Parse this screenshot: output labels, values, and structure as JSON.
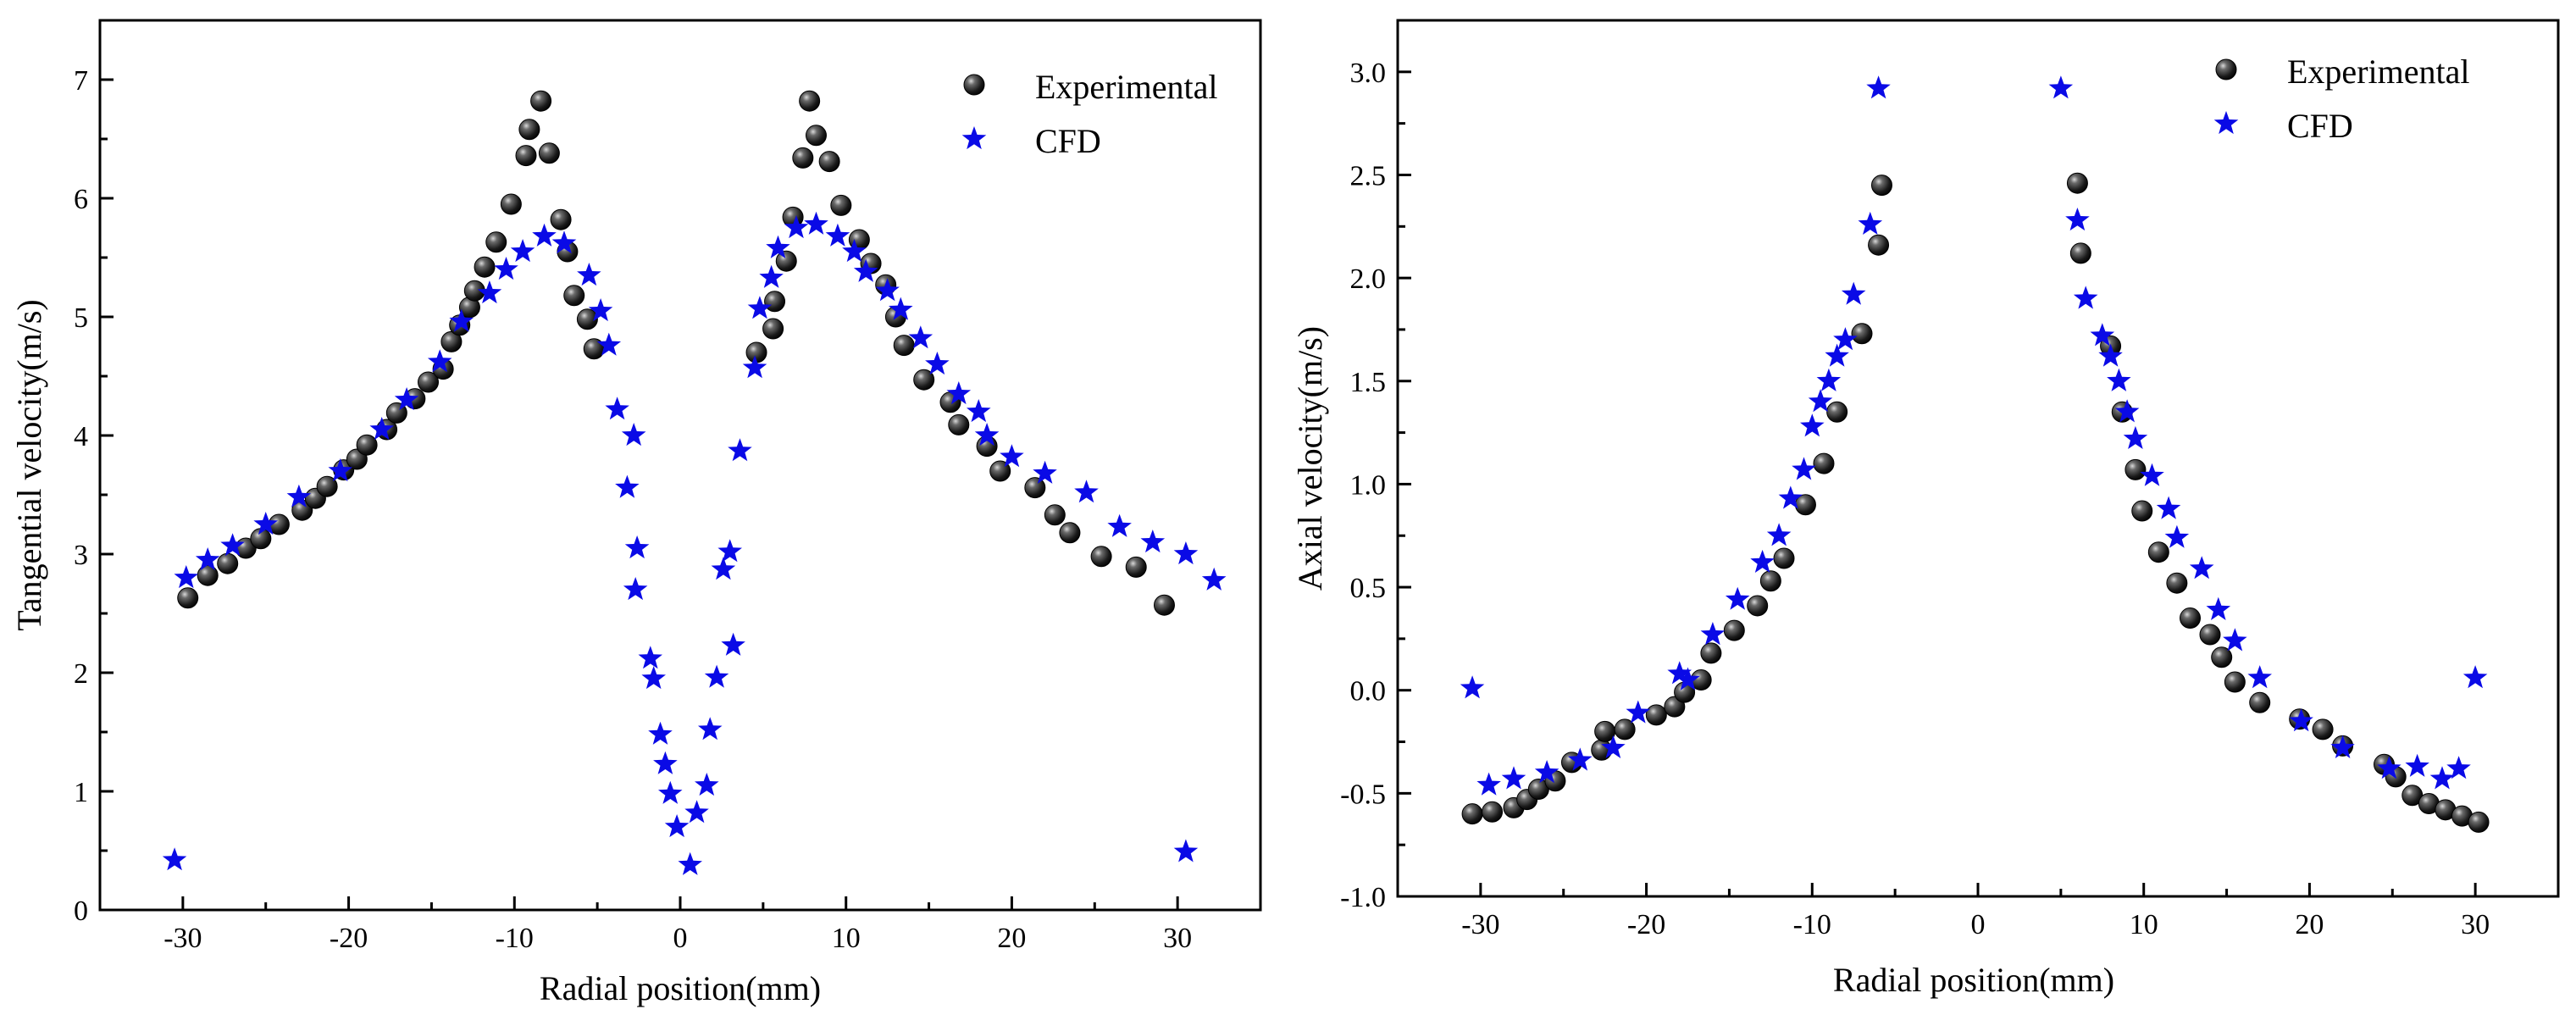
{
  "chart_data": [
    {
      "type": "scatter",
      "id": "left",
      "title": "",
      "xlabel": "Radial position(mm)",
      "ylabel": "Tangential velocity(m/s)",
      "xlim": [
        -35,
        35
      ],
      "ylim": [
        0,
        7.5
      ],
      "xticks": [
        -30,
        -20,
        -10,
        0,
        10,
        20,
        30
      ],
      "yticks": [
        0,
        1,
        2,
        3,
        4,
        5,
        6,
        7
      ],
      "grid": false,
      "legend_position": "top-right",
      "series": [
        {
          "name": "Experimental",
          "marker": "sphere",
          "color": "#111111",
          "points": [
            [
              -29.7,
              2.63
            ],
            [
              -28.5,
              2.82
            ],
            [
              -27.3,
              2.92
            ],
            [
              -26.2,
              3.05
            ],
            [
              -25.3,
              3.13
            ],
            [
              -24.2,
              3.25
            ],
            [
              -22.8,
              3.37
            ],
            [
              -22.0,
              3.47
            ],
            [
              -21.3,
              3.57
            ],
            [
              -20.3,
              3.71
            ],
            [
              -19.5,
              3.8
            ],
            [
              -18.9,
              3.92
            ],
            [
              -17.7,
              4.05
            ],
            [
              -17.1,
              4.19
            ],
            [
              -16.0,
              4.31
            ],
            [
              -15.2,
              4.45
            ],
            [
              -14.3,
              4.56
            ],
            [
              -13.8,
              4.79
            ],
            [
              -13.3,
              4.93
            ],
            [
              -12.7,
              5.08
            ],
            [
              -12.4,
              5.22
            ],
            [
              -11.8,
              5.42
            ],
            [
              -11.1,
              5.63
            ],
            [
              -10.2,
              5.95
            ],
            [
              -9.3,
              6.36
            ],
            [
              -9.1,
              6.58
            ],
            [
              -8.4,
              6.82
            ],
            [
              -7.9,
              6.38
            ],
            [
              -7.2,
              5.82
            ],
            [
              -6.8,
              5.55
            ],
            [
              -6.4,
              5.18
            ],
            [
              -5.6,
              4.98
            ],
            [
              -5.2,
              4.73
            ],
            [
              4.6,
              4.7
            ],
            [
              5.6,
              4.9
            ],
            [
              5.7,
              5.13
            ],
            [
              6.4,
              5.47
            ],
            [
              6.8,
              5.84
            ],
            [
              7.4,
              6.34
            ],
            [
              7.8,
              6.82
            ],
            [
              8.2,
              6.53
            ],
            [
              9.0,
              6.31
            ],
            [
              9.7,
              5.94
            ],
            [
              10.8,
              5.65
            ],
            [
              11.5,
              5.45
            ],
            [
              12.4,
              5.27
            ],
            [
              13.0,
              5.0
            ],
            [
              13.5,
              4.76
            ],
            [
              14.7,
              4.47
            ],
            [
              16.3,
              4.28
            ],
            [
              16.8,
              4.09
            ],
            [
              18.5,
              3.91
            ],
            [
              19.3,
              3.7
            ],
            [
              21.4,
              3.56
            ],
            [
              22.6,
              3.33
            ],
            [
              23.5,
              3.18
            ],
            [
              25.4,
              2.98
            ],
            [
              27.5,
              2.89
            ],
            [
              29.2,
              2.57
            ]
          ]
        },
        {
          "name": "CFD",
          "marker": "star",
          "color": "#0a0ae6",
          "points": [
            [
              -30.5,
              0.42
            ],
            [
              -29.8,
              2.8
            ],
            [
              -28.5,
              2.95
            ],
            [
              -27.0,
              3.07
            ],
            [
              -25.0,
              3.25
            ],
            [
              -23.0,
              3.48
            ],
            [
              -20.5,
              3.7
            ],
            [
              -18.0,
              4.05
            ],
            [
              -16.5,
              4.3
            ],
            [
              -14.5,
              4.62
            ],
            [
              -13.2,
              4.96
            ],
            [
              -11.5,
              5.2
            ],
            [
              -10.5,
              5.4
            ],
            [
              -9.5,
              5.55
            ],
            [
              -8.2,
              5.68
            ],
            [
              -7.0,
              5.62
            ],
            [
              -5.5,
              5.35
            ],
            [
              -4.8,
              5.05
            ],
            [
              -4.3,
              4.76
            ],
            [
              -3.8,
              4.22
            ],
            [
              -2.8,
              4.0
            ],
            [
              -3.2,
              3.56
            ],
            [
              -2.6,
              3.05
            ],
            [
              -2.7,
              2.7
            ],
            [
              -1.8,
              2.12
            ],
            [
              -1.6,
              1.95
            ],
            [
              -1.2,
              1.48
            ],
            [
              -0.9,
              1.23
            ],
            [
              -0.6,
              0.98
            ],
            [
              -0.2,
              0.7
            ],
            [
              0.6,
              0.38
            ],
            [
              1.0,
              0.82
            ],
            [
              1.6,
              1.05
            ],
            [
              1.8,
              1.52
            ],
            [
              2.2,
              1.96
            ],
            [
              2.6,
              2.87
            ],
            [
              3.0,
              3.02
            ],
            [
              3.2,
              2.23
            ],
            [
              3.6,
              3.87
            ],
            [
              4.5,
              4.57
            ],
            [
              4.8,
              5.07
            ],
            [
              5.5,
              5.33
            ],
            [
              5.9,
              5.58
            ],
            [
              7.0,
              5.75
            ],
            [
              8.2,
              5.78
            ],
            [
              9.5,
              5.68
            ],
            [
              10.5,
              5.55
            ],
            [
              11.2,
              5.38
            ],
            [
              12.5,
              5.22
            ],
            [
              13.3,
              5.06
            ],
            [
              14.5,
              4.82
            ],
            [
              15.5,
              4.6
            ],
            [
              16.8,
              4.35
            ],
            [
              18.0,
              4.2
            ],
            [
              18.5,
              4.0
            ],
            [
              20.0,
              3.82
            ],
            [
              22.0,
              3.68
            ],
            [
              24.5,
              3.52
            ],
            [
              26.5,
              3.23
            ],
            [
              28.5,
              3.1
            ],
            [
              30.5,
              3.0
            ],
            [
              32.2,
              2.78
            ],
            [
              30.5,
              0.49
            ]
          ]
        }
      ]
    },
    {
      "type": "scatter",
      "id": "right",
      "title": "",
      "xlabel": "Radial position(mm)",
      "ylabel": "Axial velocity(m/s)",
      "xlim": [
        -35,
        35
      ],
      "ylim": [
        -1.0,
        3.25
      ],
      "xticks": [
        -30,
        -20,
        -10,
        0,
        10,
        20,
        30
      ],
      "yticks": [
        -1.0,
        -0.5,
        0.0,
        0.5,
        1.0,
        1.5,
        2.0,
        2.5,
        3.0
      ],
      "grid": false,
      "legend_position": "top-right",
      "series": [
        {
          "name": "Experimental",
          "marker": "sphere",
          "color": "#111111",
          "points": [
            [
              -30.5,
              -0.6
            ],
            [
              -29.3,
              -0.59
            ],
            [
              -28.0,
              -0.57
            ],
            [
              -27.2,
              -0.53
            ],
            [
              -26.5,
              -0.48
            ],
            [
              -25.5,
              -0.44
            ],
            [
              -24.5,
              -0.35
            ],
            [
              -22.7,
              -0.29
            ],
            [
              -22.5,
              -0.2
            ],
            [
              -21.3,
              -0.19
            ],
            [
              -19.4,
              -0.12
            ],
            [
              -18.3,
              -0.08
            ],
            [
              -17.7,
              -0.01
            ],
            [
              -16.7,
              0.05
            ],
            [
              -16.1,
              0.18
            ],
            [
              -14.7,
              0.29
            ],
            [
              -13.3,
              0.41
            ],
            [
              -12.5,
              0.53
            ],
            [
              -11.7,
              0.64
            ],
            [
              -10.4,
              0.9
            ],
            [
              -9.3,
              1.1
            ],
            [
              -8.5,
              1.35
            ],
            [
              -7.0,
              1.73
            ],
            [
              -6.0,
              2.16
            ],
            [
              -5.8,
              2.45
            ],
            [
              6.0,
              2.46
            ],
            [
              6.2,
              2.12
            ],
            [
              8.0,
              1.67
            ],
            [
              8.7,
              1.35
            ],
            [
              9.5,
              1.07
            ],
            [
              9.9,
              0.87
            ],
            [
              10.9,
              0.67
            ],
            [
              12.0,
              0.52
            ],
            [
              12.8,
              0.35
            ],
            [
              14.0,
              0.27
            ],
            [
              14.7,
              0.16
            ],
            [
              15.5,
              0.04
            ],
            [
              17.0,
              -0.06
            ],
            [
              19.4,
              -0.14
            ],
            [
              20.8,
              -0.19
            ],
            [
              22.0,
              -0.27
            ],
            [
              24.5,
              -0.36
            ],
            [
              25.2,
              -0.42
            ],
            [
              26.2,
              -0.51
            ],
            [
              27.2,
              -0.55
            ],
            [
              28.2,
              -0.58
            ],
            [
              29.2,
              -0.61
            ],
            [
              30.2,
              -0.64
            ]
          ]
        },
        {
          "name": "CFD",
          "marker": "star",
          "color": "#0a0ae6",
          "points": [
            [
              -30.5,
              0.01
            ],
            [
              -29.5,
              -0.46
            ],
            [
              -28.0,
              -0.43
            ],
            [
              -26.0,
              -0.4
            ],
            [
              -24.0,
              -0.34
            ],
            [
              -22.0,
              -0.28
            ],
            [
              -20.5,
              -0.11
            ],
            [
              -18.0,
              0.08
            ],
            [
              -17.5,
              0.05
            ],
            [
              -16.0,
              0.27
            ],
            [
              -14.5,
              0.44
            ],
            [
              -13.0,
              0.62
            ],
            [
              -12.0,
              0.75
            ],
            [
              -11.3,
              0.93
            ],
            [
              -10.5,
              1.07
            ],
            [
              -10.0,
              1.28
            ],
            [
              -9.5,
              1.4
            ],
            [
              -9.0,
              1.5
            ],
            [
              -8.5,
              1.62
            ],
            [
              -8.0,
              1.7
            ],
            [
              -7.5,
              1.92
            ],
            [
              -6.5,
              2.26
            ],
            [
              -6.0,
              2.92
            ],
            [
              5.0,
              2.92
            ],
            [
              6.0,
              2.28
            ],
            [
              6.5,
              1.9
            ],
            [
              7.5,
              1.72
            ],
            [
              8.0,
              1.62
            ],
            [
              8.5,
              1.5
            ],
            [
              9.0,
              1.35
            ],
            [
              9.5,
              1.22
            ],
            [
              10.5,
              1.04
            ],
            [
              11.5,
              0.88
            ],
            [
              12.0,
              0.74
            ],
            [
              13.5,
              0.59
            ],
            [
              14.5,
              0.39
            ],
            [
              15.5,
              0.24
            ],
            [
              17.0,
              0.06
            ],
            [
              19.5,
              -0.15
            ],
            [
              22.0,
              -0.28
            ],
            [
              24.8,
              -0.38
            ],
            [
              26.5,
              -0.37
            ],
            [
              28.0,
              -0.43
            ],
            [
              29.0,
              -0.38
            ],
            [
              30.0,
              0.06
            ]
          ]
        }
      ]
    }
  ]
}
